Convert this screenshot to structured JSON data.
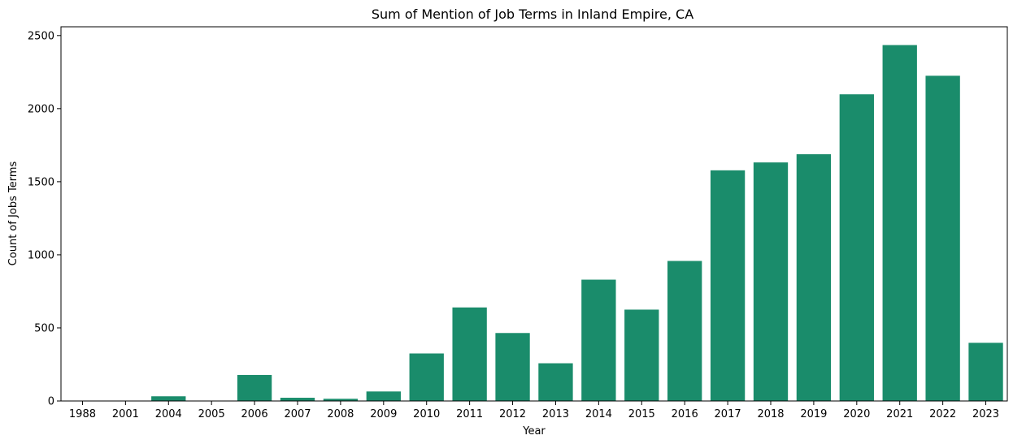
{
  "colors": {
    "bar": "#1a8c6b",
    "axis": "#000000",
    "background": "#ffffff"
  },
  "chart_data": {
    "type": "bar",
    "title": "Sum of Mention of Job Terms in Inland Empire, CA",
    "xlabel": "Year",
    "ylabel": "Count of Jobs Terms",
    "categories": [
      "1988",
      "2001",
      "2004",
      "2005",
      "2006",
      "2007",
      "2008",
      "2009",
      "2010",
      "2011",
      "2012",
      "2013",
      "2014",
      "2015",
      "2016",
      "2017",
      "2018",
      "2019",
      "2020",
      "2021",
      "2022",
      "2023"
    ],
    "values": [
      2,
      2,
      32,
      2,
      178,
      22,
      15,
      65,
      325,
      640,
      465,
      258,
      830,
      625,
      958,
      1578,
      1632,
      1688,
      2098,
      2435,
      2225,
      398
    ],
    "ylim": [
      0,
      2560
    ],
    "yticks": [
      0,
      500,
      1000,
      1500,
      2000,
      2500
    ],
    "grid": false,
    "legend": "none"
  }
}
